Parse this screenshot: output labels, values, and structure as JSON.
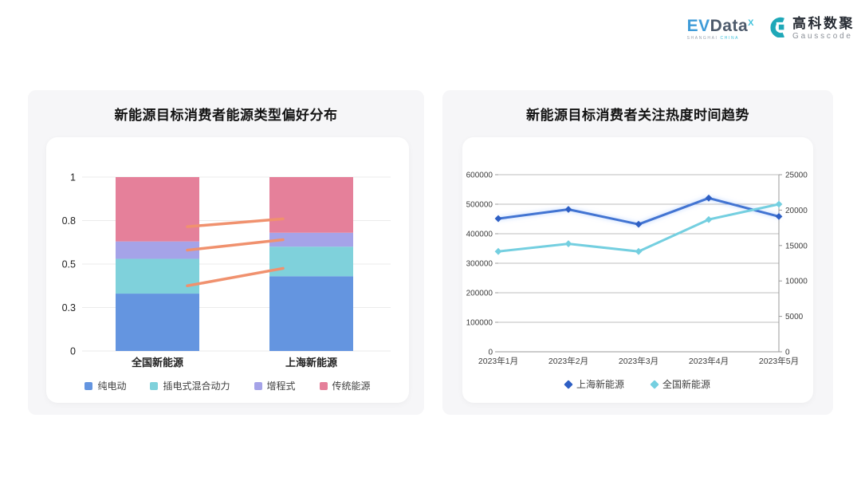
{
  "header": {
    "evdata_logo": {
      "ev": "EV",
      "data": "Data",
      "sup": "X",
      "subtitle_left": "SHANGHAI",
      "subtitle_right": "CHINA"
    },
    "gausscode_logo": {
      "cn": "高科数聚",
      "en": "Gausscode"
    }
  },
  "chart_data": [
    {
      "type": "bar",
      "stacked": true,
      "title": "新能源目标消费者能源类型偏好分布",
      "categories": [
        "全国新能源",
        "上海新能源"
      ],
      "series": [
        {
          "name": "纯电动",
          "color": "#6495e0",
          "values": [
            0.33,
            0.43
          ]
        },
        {
          "name": "插电式混合动力",
          "color": "#7fd1db",
          "values": [
            0.2,
            0.17
          ]
        },
        {
          "name": "增程式",
          "color": "#a5a3e8",
          "values": [
            0.1,
            0.08
          ]
        },
        {
          "name": "传统能源",
          "color": "#e5809a",
          "values": [
            0.37,
            0.32
          ]
        }
      ],
      "ylim": [
        0,
        1
      ],
      "yticks": [
        {
          "value": 0,
          "label": "0"
        },
        {
          "value": 0.25,
          "label": "0.3"
        },
        {
          "value": 0.5,
          "label": "0.5"
        },
        {
          "value": 0.75,
          "label": "0.8"
        },
        {
          "value": 1,
          "label": "1"
        }
      ],
      "grid": true,
      "legend_position": "bottom",
      "connector_lines": {
        "color": "#f0916e",
        "segments": [
          {
            "from_value": 0.715,
            "to_value": 0.76
          },
          {
            "from_value": 0.58,
            "to_value": 0.64
          },
          {
            "from_value": 0.375,
            "to_value": 0.475
          }
        ]
      }
    },
    {
      "type": "line",
      "title": "新能源目标消费者关注热度时间趋势",
      "x": [
        "2023年1月",
        "2023年2月",
        "2023年3月",
        "2023年4月",
        "2023年5月"
      ],
      "series": [
        {
          "name": "上海新能源",
          "axis": "right",
          "color": "#4274d2",
          "marker_color": "#2e5fc4",
          "values": [
            18800,
            20100,
            18000,
            21700,
            19100
          ]
        },
        {
          "name": "全国新能源",
          "axis": "left",
          "color": "#74cfe0",
          "marker_color": "#74cfe0",
          "values": [
            340000,
            366000,
            340000,
            448000,
            500000
          ]
        }
      ],
      "left_axis": {
        "min": 0,
        "max": 600000,
        "step": 100000,
        "labels": [
          "0",
          "100000",
          "200000",
          "300000",
          "400000",
          "500000",
          "600000"
        ]
      },
      "right_axis": {
        "min": 0,
        "max": 25000,
        "step": 5000,
        "labels": [
          "0",
          "5000",
          "10000",
          "15000",
          "20000",
          "25000"
        ]
      },
      "grid": true,
      "legend_position": "bottom"
    }
  ]
}
